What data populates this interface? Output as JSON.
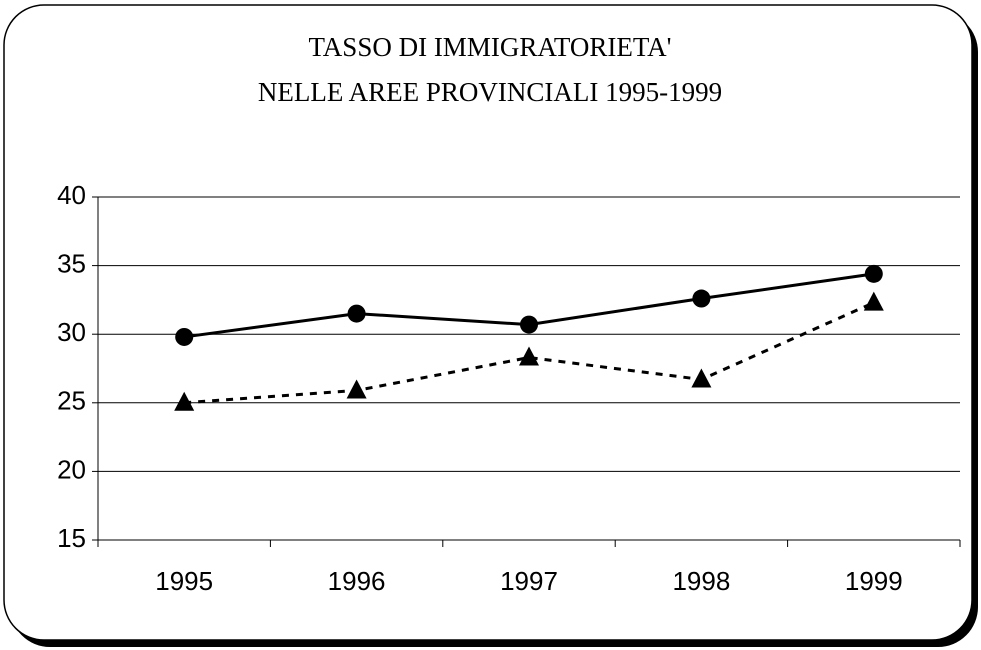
{
  "chart_data": {
    "type": "line",
    "title": [
      "TASSO DI IMMIGRATORIETA'",
      "NELLE AREE PROVINCIALI 1995-1999"
    ],
    "categories": [
      "1995",
      "1996",
      "1997",
      "1998",
      "1999"
    ],
    "series": [
      {
        "color": "#000000",
        "marker": "circle",
        "dash": false,
        "values": [
          29.8,
          31.5,
          30.7,
          32.6,
          34.4
        ]
      },
      {
        "color": "#000000",
        "marker": "triangle",
        "dash": true,
        "values": [
          25.0,
          25.9,
          28.3,
          26.7,
          32.3
        ]
      }
    ],
    "ylim": [
      15,
      40
    ],
    "yticks": [
      15,
      20,
      25,
      30,
      35,
      40
    ],
    "grid": true
  }
}
